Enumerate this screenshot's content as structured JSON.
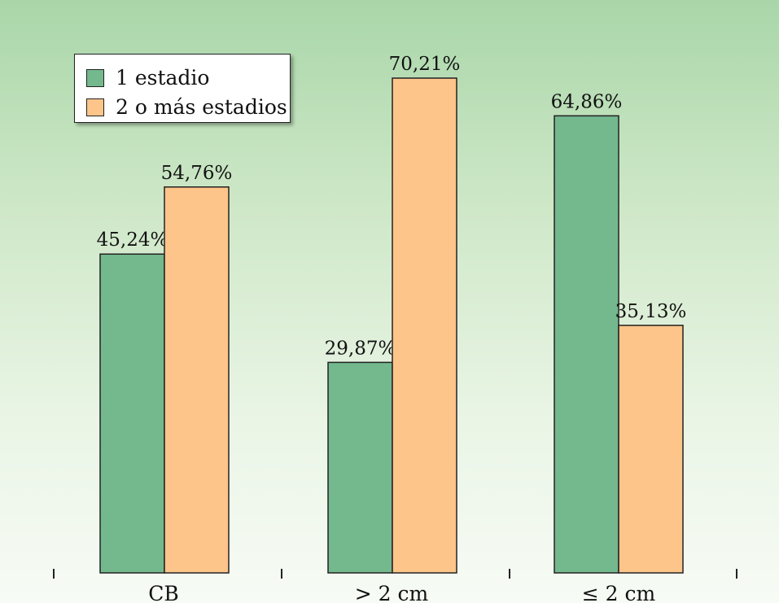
{
  "chart_data": {
    "type": "bar",
    "categories": [
      "CB",
      "> 2 cm",
      "≤ 2 cm"
    ],
    "series": [
      {
        "name": "1 estadio",
        "color": "#74b88e",
        "values": [
          45.24,
          29.87,
          64.86
        ],
        "labels": [
          "45,24%",
          "29,87%",
          "64,86%"
        ]
      },
      {
        "name": "2 o más estadios",
        "color": "#fec58a",
        "values": [
          54.76,
          70.21,
          35.13
        ],
        "labels": [
          "54,76%",
          "70,21%",
          "35,13%"
        ]
      }
    ],
    "ylim": [
      0,
      80
    ],
    "legend": {
      "position": "top-left"
    }
  }
}
